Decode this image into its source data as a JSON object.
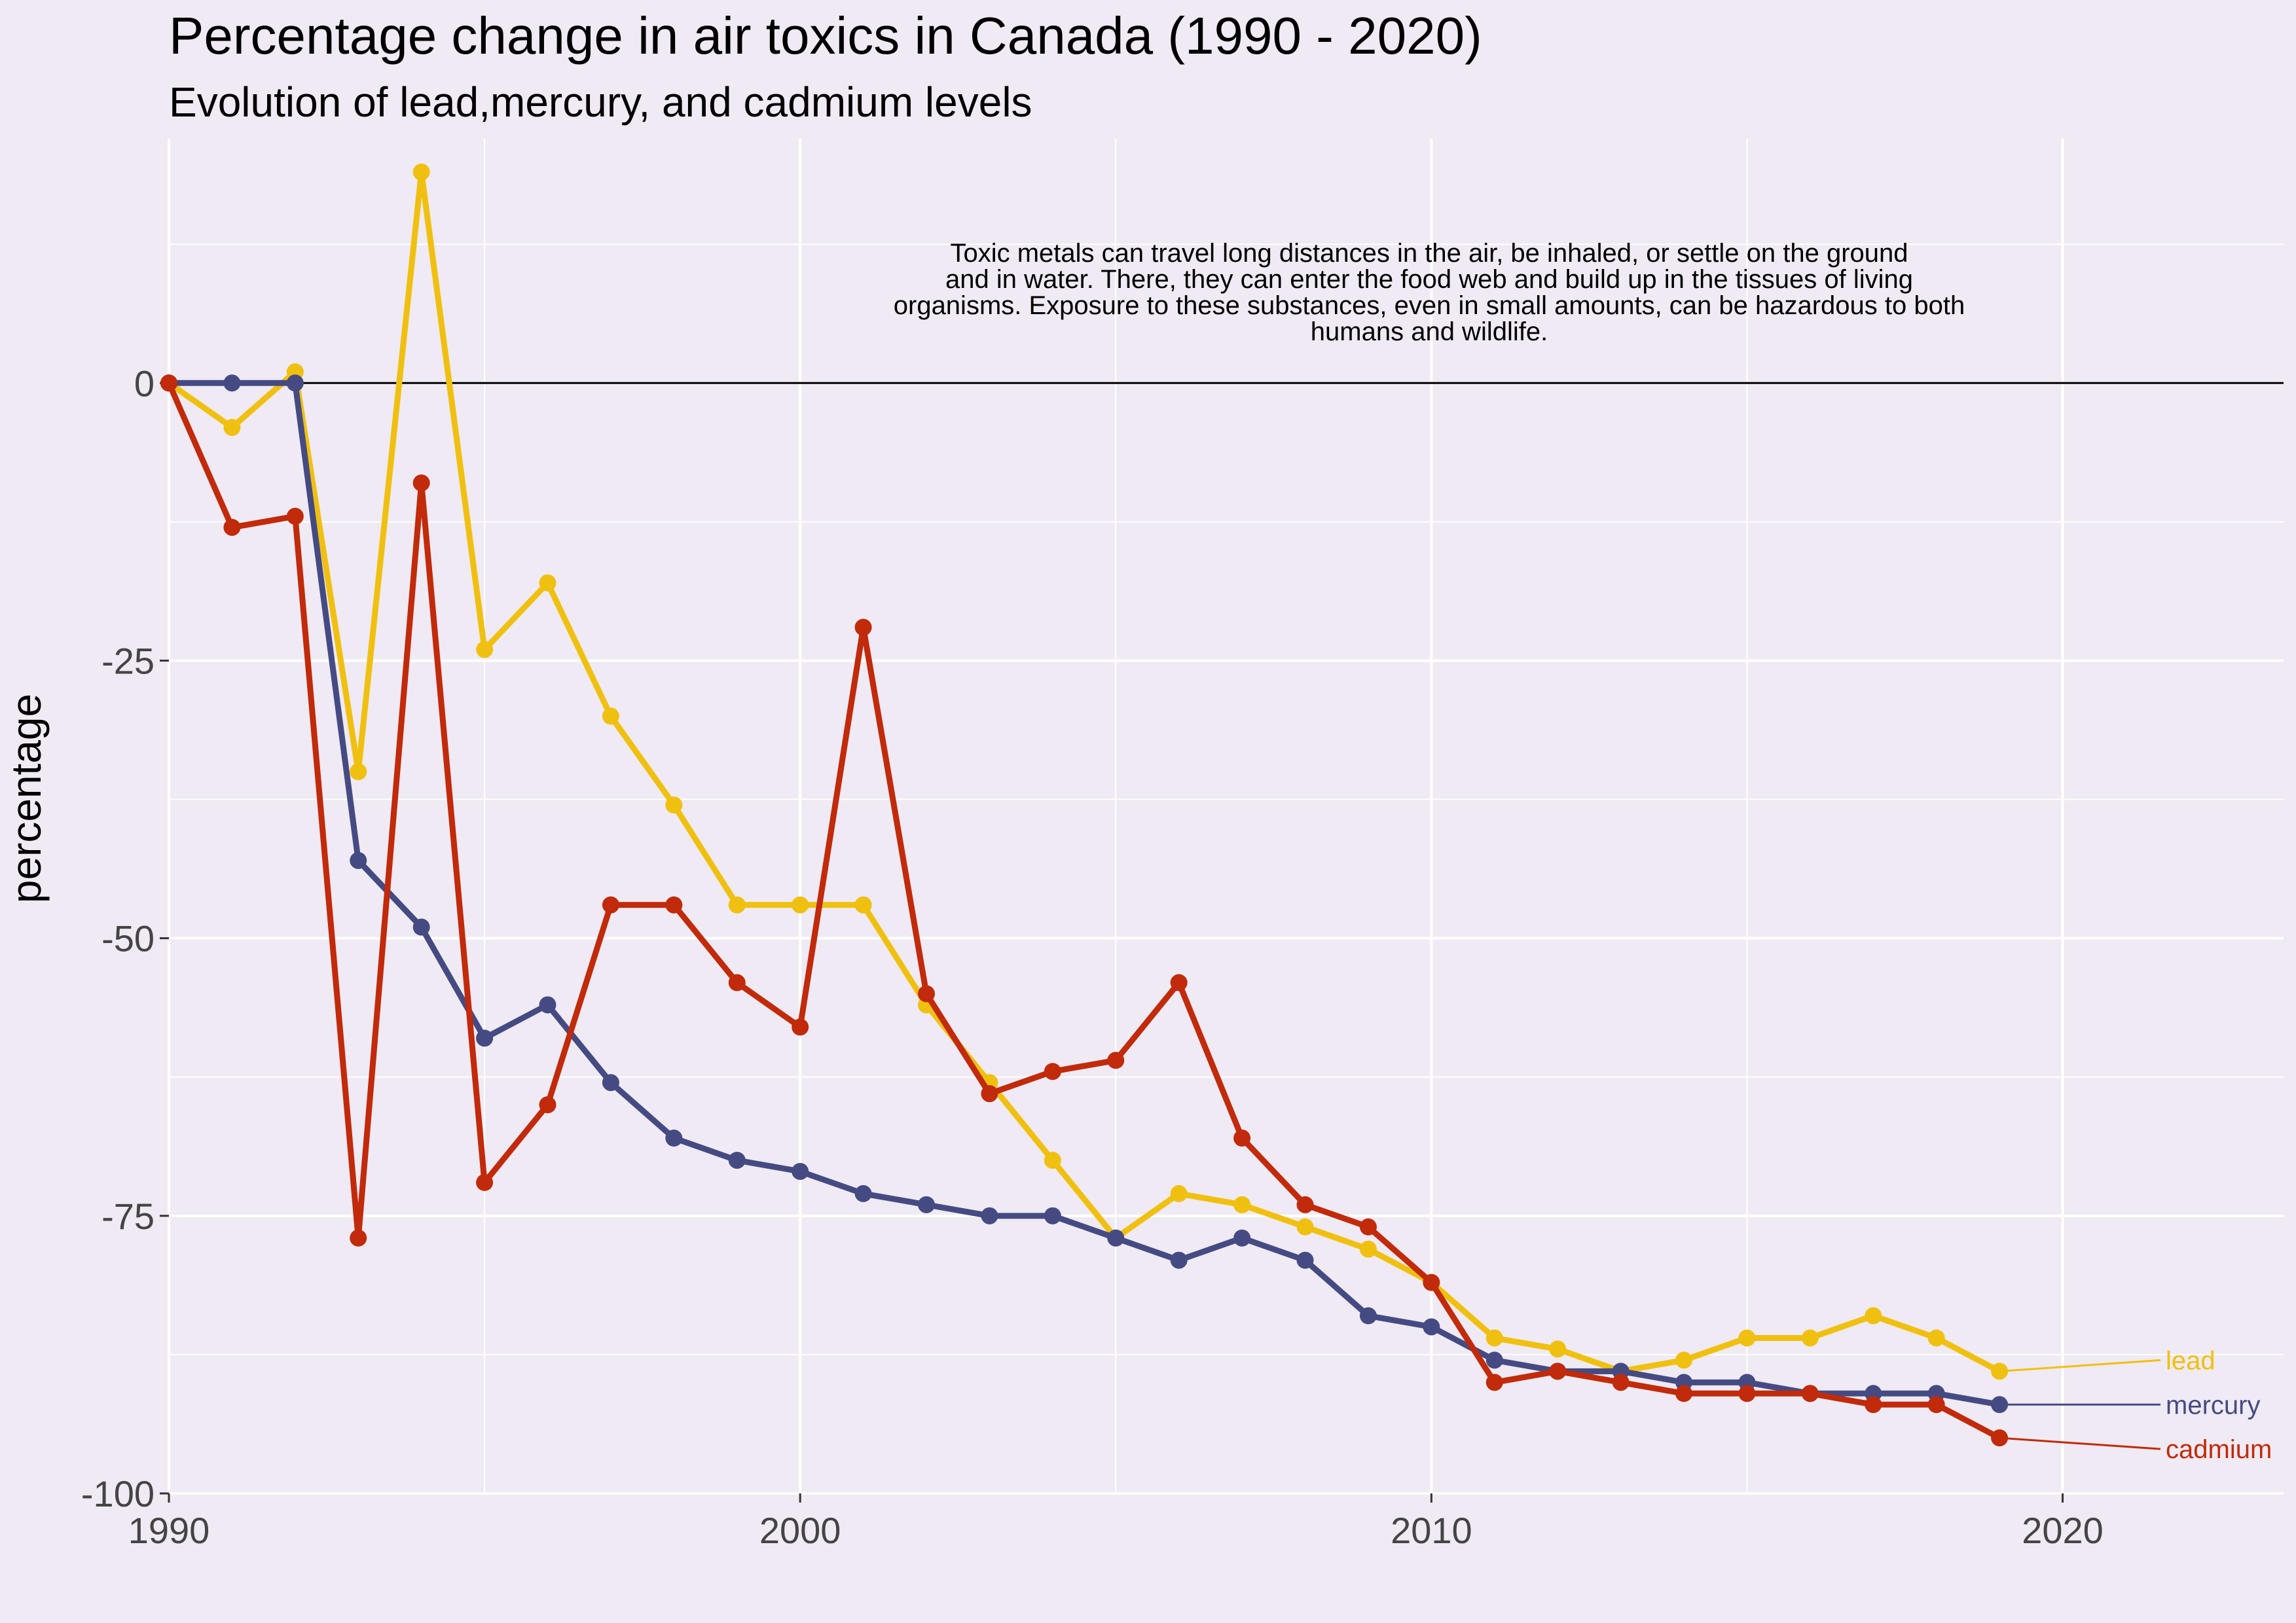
{
  "chart_data": {
    "type": "line",
    "title": "Percentage change in air toxics in Canada (1990 - 2020)",
    "subtitle": "Evolution of lead,mercury, and cadmium levels",
    "xlabel": "",
    "ylabel": "percentage",
    "xlim": [
      1990,
      2023.5
    ],
    "ylim": [
      -100,
      22
    ],
    "xticks": [
      1990,
      2000,
      2010,
      2020
    ],
    "yticks": [
      0,
      -25,
      -50,
      -75,
      -100
    ],
    "grid": true,
    "zero_line": true,
    "annotation": [
      "Toxic metals can travel long distances in the air, be inhaled, or settle on the ground",
      "and in water. There, they can enter the food web and build up in the tissues of living",
      "organisms. Exposure to these substances, even in small amounts, can be hazardous to both",
      "humans and wildlife."
    ],
    "x": [
      1990,
      1991,
      1992,
      1993,
      1994,
      1995,
      1996,
      1997,
      1998,
      1999,
      2000,
      2001,
      2002,
      2003,
      2004,
      2005,
      2006,
      2007,
      2008,
      2009,
      2010,
      2011,
      2012,
      2013,
      2014,
      2015,
      2016,
      2017,
      2018,
      2019
    ],
    "series": [
      {
        "name": "lead",
        "color": "#f0c010",
        "label_y": -88,
        "values": [
          0,
          -4,
          1,
          -35,
          19,
          -24,
          -18,
          -30,
          -38,
          -47,
          -47,
          -47,
          -56,
          -63,
          -70,
          -77,
          -73,
          -74,
          -76,
          -78,
          -81,
          -86,
          -87,
          -89,
          -88,
          -86,
          -86,
          -84,
          -86,
          -89
        ]
      },
      {
        "name": "mercury",
        "color": "#454b82",
        "label_y": -92,
        "values": [
          0,
          0,
          0,
          -43,
          -49,
          -59,
          -56,
          -63,
          -68,
          -70,
          -71,
          -73,
          -74,
          -75,
          -75,
          -77,
          -79,
          -77,
          -79,
          -84,
          -85,
          -88,
          -89,
          -89,
          -90,
          -90,
          -91,
          -91,
          -91,
          -92
        ]
      },
      {
        "name": "cadmium",
        "color": "#c12a0a",
        "label_y": -96,
        "values": [
          0,
          -13,
          -12,
          -77,
          -9,
          -72,
          -65,
          -47,
          -47,
          -54,
          -58,
          -22,
          -55,
          -64,
          -62,
          -61,
          -54,
          -68,
          -74,
          -76,
          -81,
          -90,
          -89,
          -90,
          -91,
          -91,
          -91,
          -92,
          -92,
          -95
        ]
      }
    ]
  }
}
